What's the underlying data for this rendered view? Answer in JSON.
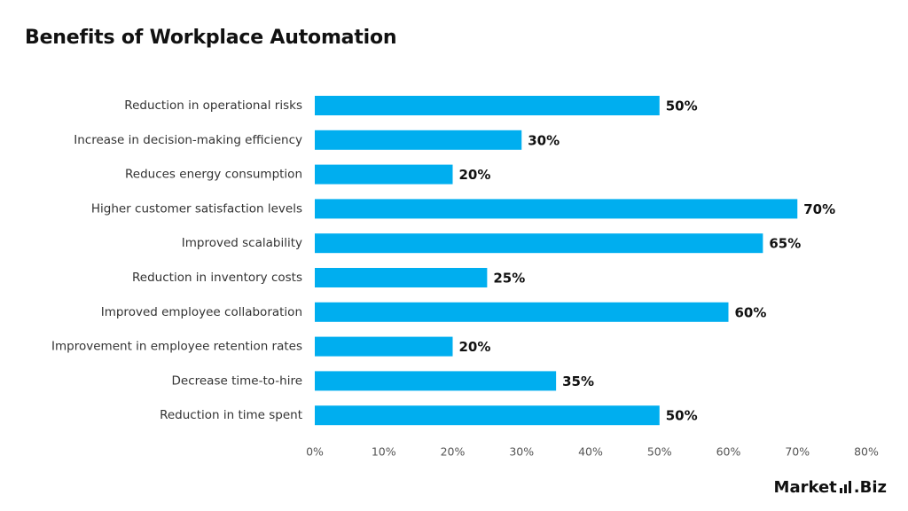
{
  "title": "Benefits of Workplace Automation",
  "logo": {
    "text_left": "Market",
    "text_right": ".Biz"
  },
  "chart_data": {
    "type": "bar",
    "orientation": "horizontal",
    "title": "Benefits of Workplace Automation",
    "categories": [
      "Reduction in operational risks",
      "Increase in decision-making efficiency",
      "Reduces energy consumption",
      "Higher customer satisfaction levels",
      "Improved scalability",
      "Reduction in inventory costs",
      "Improved employee collaboration",
      "Improvement in employee retention rates",
      "Decrease time-to-hire",
      "Reduction in time spent"
    ],
    "values": [
      50,
      30,
      20,
      70,
      65,
      25,
      60,
      20,
      35,
      50
    ],
    "value_labels": [
      "50%",
      "30%",
      "20%",
      "70%",
      "65%",
      "25%",
      "60%",
      "20%",
      "35%",
      "50%"
    ],
    "xlim": [
      0,
      80
    ],
    "xticks": [
      0,
      10,
      20,
      30,
      40,
      50,
      60,
      70,
      80
    ],
    "xtick_labels": [
      "0%",
      "10%",
      "20%",
      "30%",
      "40%",
      "50%",
      "60%",
      "70%",
      "80%"
    ],
    "bar_color": "#00AEEF",
    "grid": false,
    "legend": "none"
  }
}
